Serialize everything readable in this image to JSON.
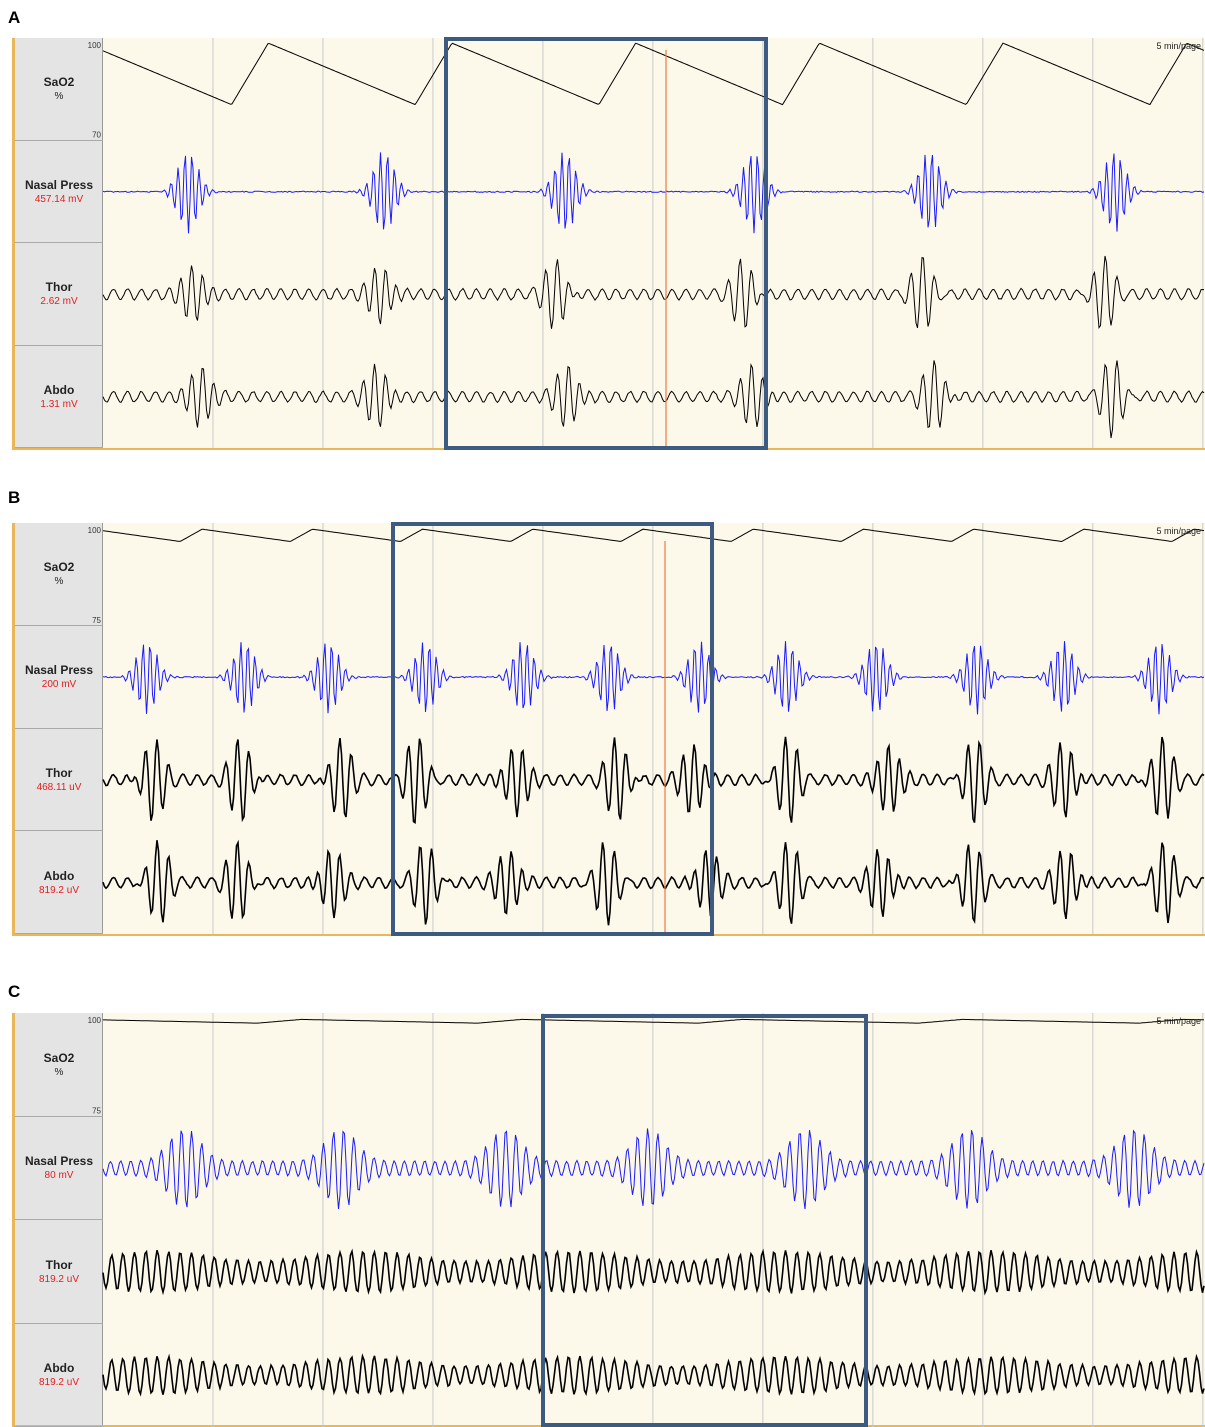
{
  "chart_data": [
    {
      "type": "line",
      "panel_label": "A",
      "page_speed": "5 min/page",
      "highlight": true,
      "epoch_lines": 10,
      "channels": [
        {
          "name": "SaO2",
          "scale": "%",
          "scale_is_unit": true,
          "ymax_label": "100",
          "ymin_label": "70",
          "color": "#000000",
          "pattern": "sao2",
          "amplitude": 0.75,
          "events": 6
        },
        {
          "name": "Nasal Press",
          "scale": "457.14 mV",
          "color": "#1a1aff",
          "pattern": "bursts",
          "amplitude": 0.9,
          "events": 6
        },
        {
          "name": "Thor",
          "scale": "2.62 mV",
          "color": "#000000",
          "pattern": "breath-bursts",
          "amplitude": 0.8,
          "events": 6
        },
        {
          "name": "Abdo",
          "scale": "1.31 mV",
          "color": "#000000",
          "pattern": "breath-bursts",
          "amplitude": 0.85,
          "events": 6
        }
      ]
    },
    {
      "type": "line",
      "panel_label": "B",
      "page_speed": "5 min/page",
      "highlight": true,
      "epoch_lines": 10,
      "channels": [
        {
          "name": "SaO2",
          "scale": "%",
          "scale_is_unit": true,
          "ymax_label": "100",
          "ymin_label": "75",
          "color": "#000000",
          "pattern": "sao2-small",
          "amplitude": 0.3,
          "events": 10
        },
        {
          "name": "Nasal Press",
          "scale": "200 mV",
          "color": "#1a1aff",
          "pattern": "bursts",
          "amplitude": 0.8,
          "events": 12
        },
        {
          "name": "Thor",
          "scale": "468.11 uV",
          "color": "#000000",
          "pattern": "breath-bursts",
          "amplitude": 0.95,
          "events": 12
        },
        {
          "name": "Abdo",
          "scale": "819.2 uV",
          "color": "#000000",
          "pattern": "breath-bursts",
          "amplitude": 0.9,
          "events": 12
        }
      ]
    },
    {
      "type": "line",
      "panel_label": "C",
      "page_speed": "5 min/page",
      "highlight": true,
      "epoch_lines": 10,
      "channels": [
        {
          "name": "SaO2",
          "scale": "%",
          "scale_is_unit": true,
          "ymax_label": "100",
          "ymin_label": "75",
          "color": "#000000",
          "pattern": "sao2-flat",
          "amplitude": 0.15,
          "events": 5
        },
        {
          "name": "Nasal Press",
          "scale": "80 mV",
          "color": "#1a1aff",
          "pattern": "regular-bursts",
          "amplitude": 0.85,
          "events": 7
        },
        {
          "name": "Thor",
          "scale": "819.2 uV",
          "color": "#000000",
          "pattern": "regular",
          "amplitude": 0.45,
          "events": 0
        },
        {
          "name": "Abdo",
          "scale": "819.2 uV",
          "color": "#000000",
          "pattern": "regular",
          "amplitude": 0.4,
          "events": 0
        }
      ]
    }
  ]
}
